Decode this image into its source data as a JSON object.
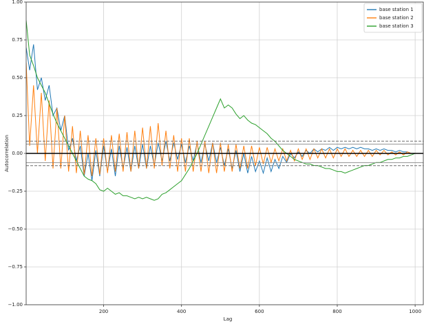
{
  "chart_data": {
    "type": "line",
    "xlabel": "Lag",
    "ylabel": "Autocorrelation",
    "x": [
      1,
      10,
      20,
      30,
      40,
      50,
      60,
      70,
      80,
      90,
      100,
      110,
      120,
      130,
      140,
      150,
      160,
      170,
      180,
      190,
      200,
      210,
      220,
      230,
      240,
      250,
      260,
      270,
      280,
      290,
      300,
      310,
      320,
      330,
      340,
      350,
      360,
      370,
      380,
      390,
      400,
      410,
      420,
      430,
      440,
      450,
      460,
      470,
      480,
      490,
      500,
      510,
      520,
      530,
      540,
      550,
      560,
      570,
      580,
      590,
      600,
      610,
      620,
      630,
      640,
      650,
      660,
      670,
      680,
      690,
      700,
      710,
      720,
      730,
      740,
      750,
      760,
      770,
      780,
      790,
      800,
      810,
      820,
      830,
      840,
      850,
      860,
      870,
      880,
      890,
      900,
      910,
      920,
      930,
      940,
      950,
      960,
      970,
      980,
      990,
      1000
    ],
    "series": [
      {
        "name": "base station 1",
        "color": "#1f77b4",
        "values": [
          0.7,
          0.55,
          0.72,
          0.42,
          0.5,
          0.35,
          0.45,
          0.25,
          0.3,
          0.15,
          0.25,
          0.02,
          0.1,
          -0.05,
          0.05,
          -0.15,
          0.0,
          -0.18,
          0.02,
          -0.15,
          0.05,
          -0.12,
          0.03,
          -0.15,
          0.05,
          -0.1,
          0.04,
          -0.12,
          0.05,
          -0.1,
          0.06,
          -0.1,
          0.05,
          -0.08,
          0.07,
          -0.05,
          0.08,
          -0.05,
          0.07,
          -0.04,
          0.06,
          -0.06,
          0.05,
          -0.05,
          0.07,
          -0.06,
          0.06,
          -0.05,
          0.07,
          -0.06,
          0.04,
          -0.08,
          0.03,
          -0.1,
          0.02,
          -0.12,
          0.0,
          -0.13,
          -0.02,
          -0.12,
          -0.05,
          -0.13,
          -0.03,
          -0.12,
          -0.04,
          -0.1,
          -0.02,
          -0.06,
          0.0,
          -0.03,
          0.01,
          -0.02,
          0.02,
          0.0,
          0.03,
          0.01,
          0.03,
          0.02,
          0.04,
          0.02,
          0.04,
          0.03,
          0.04,
          0.03,
          0.04,
          0.03,
          0.04,
          0.03,
          0.03,
          0.02,
          0.03,
          0.02,
          0.03,
          0.02,
          0.02,
          0.01,
          0.02,
          0.01,
          0.01,
          0.0,
          0.0
        ]
      },
      {
        "name": "base station 2",
        "color": "#ff7f0e",
        "values": [
          0.6,
          0.05,
          0.45,
          0.0,
          0.4,
          -0.05,
          0.35,
          -0.1,
          0.3,
          -0.1,
          0.25,
          -0.12,
          0.18,
          -0.13,
          0.15,
          -0.14,
          0.12,
          -0.15,
          0.1,
          -0.14,
          0.1,
          -0.13,
          0.12,
          -0.12,
          0.13,
          -0.12,
          0.14,
          -0.12,
          0.15,
          -0.1,
          0.17,
          -0.1,
          0.18,
          -0.1,
          0.2,
          -0.08,
          0.15,
          -0.1,
          0.12,
          -0.12,
          0.1,
          -0.12,
          0.1,
          -0.12,
          0.08,
          -0.12,
          0.08,
          -0.13,
          0.07,
          -0.13,
          0.07,
          -0.12,
          0.06,
          -0.12,
          0.06,
          -0.1,
          0.05,
          -0.1,
          0.05,
          -0.08,
          0.04,
          -0.07,
          0.04,
          -0.06,
          0.03,
          -0.05,
          0.03,
          -0.05,
          0.02,
          -0.05,
          0.03,
          -0.04,
          0.03,
          -0.04,
          0.03,
          -0.03,
          0.03,
          -0.03,
          0.03,
          -0.03,
          0.03,
          -0.02,
          0.03,
          -0.02,
          0.02,
          -0.02,
          0.02,
          -0.02,
          0.02,
          -0.02,
          0.02,
          -0.01,
          0.02,
          -0.01,
          0.01,
          -0.01,
          0.01,
          -0.01,
          0.01,
          0.0,
          0.0
        ]
      },
      {
        "name": "base station 3",
        "color": "#2ca02c",
        "values": [
          0.88,
          0.65,
          0.58,
          0.5,
          0.45,
          0.4,
          0.33,
          0.26,
          0.2,
          0.15,
          0.1,
          0.05,
          0.0,
          -0.05,
          -0.1,
          -0.15,
          -0.17,
          -0.18,
          -0.2,
          -0.24,
          -0.25,
          -0.23,
          -0.25,
          -0.27,
          -0.26,
          -0.28,
          -0.28,
          -0.29,
          -0.3,
          -0.29,
          -0.3,
          -0.29,
          -0.3,
          -0.31,
          -0.3,
          -0.27,
          -0.26,
          -0.24,
          -0.22,
          -0.2,
          -0.18,
          -0.14,
          -0.1,
          -0.05,
          0.0,
          0.06,
          0.12,
          0.18,
          0.24,
          0.3,
          0.36,
          0.3,
          0.32,
          0.3,
          0.26,
          0.23,
          0.25,
          0.22,
          0.2,
          0.19,
          0.17,
          0.15,
          0.13,
          0.1,
          0.08,
          0.05,
          0.02,
          0.0,
          -0.02,
          -0.04,
          -0.05,
          -0.06,
          -0.07,
          -0.07,
          -0.08,
          -0.08,
          -0.09,
          -0.1,
          -0.1,
          -0.11,
          -0.12,
          -0.12,
          -0.13,
          -0.12,
          -0.11,
          -0.1,
          -0.09,
          -0.08,
          -0.08,
          -0.07,
          -0.06,
          -0.06,
          -0.05,
          -0.04,
          -0.04,
          -0.03,
          -0.03,
          -0.02,
          -0.02,
          -0.01,
          0.0
        ]
      }
    ],
    "hlines": [
      {
        "value": 0.081,
        "color": "#555555",
        "dash": true
      },
      {
        "value": 0.0617,
        "color": "#888888",
        "dash": false
      },
      {
        "value": 0,
        "color": "#000000",
        "dash": false
      },
      {
        "value": -0.0617,
        "color": "#888888",
        "dash": false
      },
      {
        "value": -0.081,
        "color": "#555555",
        "dash": true
      }
    ],
    "xlim": [
      1,
      1021
    ],
    "ylim": [
      -1,
      1
    ],
    "xticks": [
      200,
      400,
      600,
      800,
      1000
    ],
    "yticks": [
      {
        "value": -1,
        "label": "−1.00"
      },
      {
        "value": -0.75,
        "label": "−0.75"
      },
      {
        "value": -0.5,
        "label": "−0.50"
      },
      {
        "value": -0.25,
        "label": "−0.25"
      },
      {
        "value": 0,
        "label": "0.00"
      },
      {
        "value": 0.25,
        "label": "0.25"
      },
      {
        "value": 0.5,
        "label": "0.50"
      },
      {
        "value": 0.75,
        "label": "0.75"
      },
      {
        "value": 1,
        "label": "1.00"
      }
    ],
    "grid": true,
    "legend": "upper right"
  }
}
